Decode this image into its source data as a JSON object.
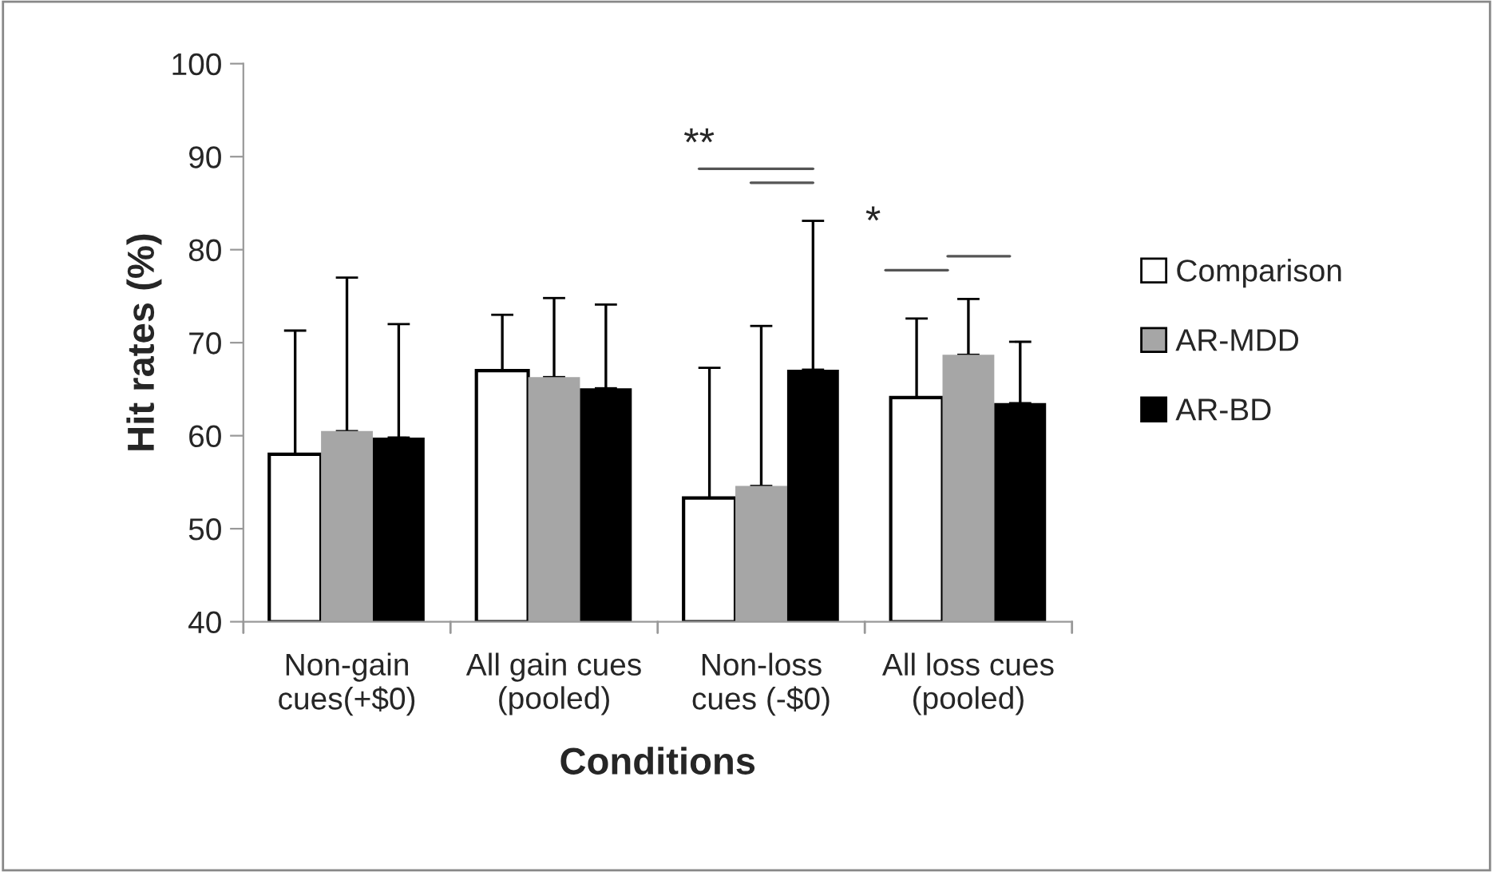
{
  "chart_data": {
    "type": "bar",
    "xlabel": "Conditions",
    "ylabel": "Hit rates (%)",
    "categories": [
      "Non-gain\ncues(+$0)",
      "All gain cues\n(pooled)",
      "Non-loss\ncues (-$0)",
      "All loss cues\n(pooled)"
    ],
    "series": [
      {
        "name": "Comparison",
        "color": "#ffffff",
        "values": [
          58,
          67,
          53.3,
          64.1
        ],
        "errors": [
          [
            58,
            71.3
          ],
          [
            67,
            73
          ],
          [
            53.3,
            67.3
          ],
          [
            64.1,
            72.6
          ]
        ]
      },
      {
        "name": "AR-MDD",
        "color": "#a6a6a6",
        "values": [
          60.5,
          66.3,
          54.6,
          68.7
        ],
        "errors": [
          [
            60.5,
            77
          ],
          [
            66.3,
            74.8
          ],
          [
            54.6,
            71.8
          ],
          [
            68.7,
            74.7
          ]
        ]
      },
      {
        "name": "AR-BD",
        "color": "#000000",
        "values": [
          59.8,
          65.1,
          67.1,
          63.5
        ],
        "errors": [
          [
            59.8,
            72
          ],
          [
            65.1,
            74.1
          ],
          [
            67.1,
            83.1
          ],
          [
            63.5,
            70.1
          ]
        ]
      }
    ],
    "ylim": [
      40,
      100
    ],
    "yticks": [
      40,
      50,
      60,
      70,
      80,
      90,
      100
    ],
    "grid": false,
    "legend": "right",
    "annotations": [
      "**",
      "*"
    ]
  }
}
